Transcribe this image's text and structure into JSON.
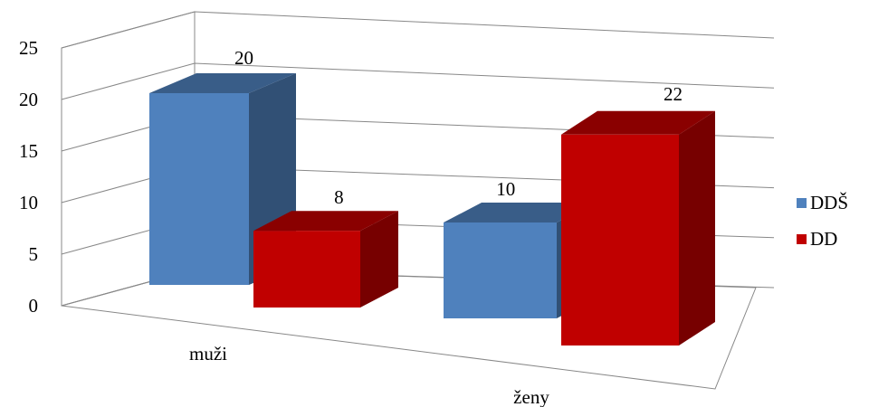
{
  "chart_data": {
    "type": "bar",
    "categories": [
      "muži",
      "ženy"
    ],
    "series": [
      {
        "name": "DDŠ",
        "values": [
          20,
          10
        ],
        "color": "#4f81bd"
      },
      {
        "name": "DD",
        "values": [
          8,
          22
        ],
        "color": "#c00000"
      }
    ],
    "ylim": [
      0,
      25
    ],
    "yticks": [
      "0",
      "5",
      "10",
      "15",
      "20",
      "25"
    ],
    "grid": true,
    "legend": "right",
    "style": "3d-clustered-column"
  }
}
